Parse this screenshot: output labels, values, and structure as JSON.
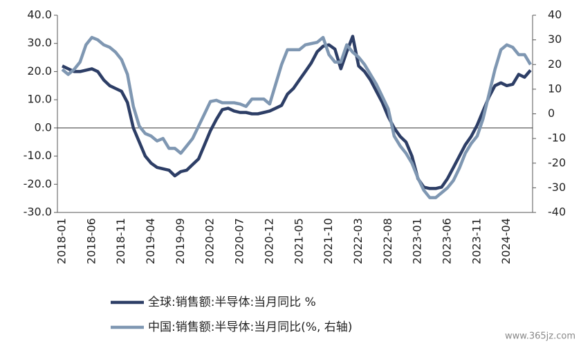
{
  "chart_data": {
    "type": "line",
    "categories": [
      "2018-01",
      null,
      null,
      null,
      null,
      "2018-06",
      null,
      null,
      null,
      null,
      "2018-11",
      null,
      null,
      null,
      null,
      "2019-04",
      null,
      null,
      null,
      null,
      "2019-09",
      null,
      null,
      null,
      null,
      "2020-02",
      null,
      null,
      null,
      null,
      "2020-07",
      null,
      null,
      null,
      null,
      "2020-12",
      null,
      null,
      null,
      null,
      "2021-05",
      null,
      null,
      null,
      null,
      "2021-10",
      null,
      null,
      null,
      null,
      "2022-03",
      null,
      null,
      null,
      null,
      "2022-08",
      null,
      null,
      null,
      null,
      "2023-01",
      null,
      null,
      null,
      null,
      "2023-06",
      null,
      null,
      null,
      null,
      "2023-11",
      null,
      null,
      null,
      null,
      "2024-04",
      null,
      null,
      null,
      null
    ],
    "series": [
      {
        "name": "全球:销售额:半导体:当月同比 %",
        "color": "#2d3e66",
        "axis": "y",
        "values": [
          22,
          21,
          20,
          20,
          20.5,
          21,
          20,
          17,
          15,
          14,
          13,
          9,
          0,
          -5,
          -10,
          -12.5,
          -14,
          -14.5,
          -15,
          -17,
          -15.5,
          -15,
          -13,
          -11,
          -6,
          -1,
          3,
          6.5,
          7,
          6,
          5.5,
          5.5,
          5,
          5,
          5.5,
          6,
          7,
          8,
          12,
          14,
          17,
          20,
          23,
          27,
          29,
          29.5,
          28,
          21,
          27,
          32.5,
          22,
          20,
          17,
          13,
          9,
          4,
          0,
          -3,
          -5,
          -10,
          -18,
          -21,
          -21.5,
          -21.5,
          -21,
          -18,
          -14,
          -10,
          -6,
          -3,
          1,
          6,
          11,
          15,
          16,
          15,
          15.5,
          19,
          18,
          20.5
        ]
      },
      {
        "name": "中国:销售额:半导体:当月同比(%, 右轴)",
        "color": "#7f97b2",
        "axis": "y2",
        "values": [
          18,
          16,
          18,
          21,
          28,
          31,
          30,
          28,
          27,
          25,
          22,
          16,
          3,
          -5,
          -8,
          -9,
          -11,
          -10,
          -14,
          -14,
          -16,
          -13,
          -10,
          -5,
          0,
          5,
          5.5,
          4.5,
          4.5,
          4.5,
          4,
          3,
          6,
          6,
          6,
          4,
          12,
          20,
          26,
          26,
          26,
          28,
          28.5,
          29,
          31,
          24,
          21,
          21,
          28,
          25,
          23,
          20,
          16,
          12,
          7,
          2,
          -9,
          -13,
          -16,
          -20,
          -26,
          -31,
          -34,
          -34,
          -32,
          -30,
          -27,
          -22,
          -16,
          -12,
          -9,
          -2,
          8,
          18,
          26,
          28,
          27,
          24,
          24,
          20
        ]
      }
    ],
    "ylim": [
      -30,
      40
    ],
    "yticks": [
      {
        "value": -30,
        "label": "-30.0"
      },
      {
        "value": -20,
        "label": "-20.0"
      },
      {
        "value": -10,
        "label": "-10.0"
      },
      {
        "value": 0,
        "label": "0.0"
      },
      {
        "value": 10,
        "label": "10.0"
      },
      {
        "value": 20,
        "label": "20.0"
      },
      {
        "value": 30,
        "label": "30.0"
      },
      {
        "value": 40,
        "label": "40.0"
      }
    ],
    "y2lim": [
      -40,
      40
    ],
    "y2ticks": [
      -40,
      -30,
      -20,
      -10,
      0,
      10,
      20,
      30,
      40
    ],
    "watermark": "www.365jz.com"
  }
}
